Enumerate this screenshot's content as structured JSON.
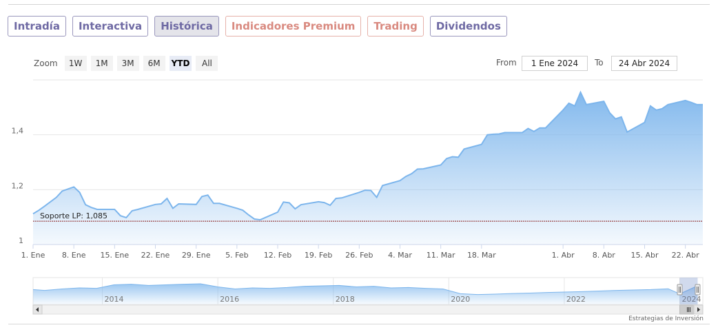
{
  "tabs": [
    {
      "label": "Intradía",
      "active": false
    },
    {
      "label": "Interactiva",
      "active": false
    },
    {
      "label": "Histórica",
      "active": true
    },
    {
      "label": "Indicadores Premium",
      "active": false
    },
    {
      "label": "Trading",
      "active": false
    },
    {
      "label": "Dividendos",
      "active": false
    }
  ],
  "zoom": {
    "label": "Zoom",
    "buttons": [
      "1W",
      "1M",
      "3M",
      "6M",
      "YTD",
      "All"
    ],
    "active": "YTD"
  },
  "range": {
    "from_label": "From",
    "from_value": "1 Ene 2024",
    "to_label": "To",
    "to_value": "24 Abr 2024"
  },
  "credit": "Estrategias de Inversión",
  "colors": {
    "line": "#7cb5ec",
    "area_top": "#7cb5ec",
    "support_line": "#8b1a1a",
    "tab_text": "#6e69a3",
    "premium_text": "#d98a80"
  },
  "chart_data": {
    "type": "area",
    "title": "",
    "xlabel": "",
    "ylabel": "",
    "ylim": [
      1.0,
      1.6
    ],
    "y_ticks": [
      "1",
      "1,2",
      "1,4"
    ],
    "y_tick_values": [
      1.0,
      1.2,
      1.4
    ],
    "x_tick_labels": [
      "1. Ene",
      "8. Ene",
      "15. Ene",
      "22. Ene",
      "29. Ene",
      "5. Feb",
      "12. Feb",
      "19. Feb",
      "26. Feb",
      "4. Mar",
      "11. Mar",
      "18. Mar",
      "1. Abr",
      "8. Abr",
      "15. Abr",
      "22. Abr"
    ],
    "x_tick_days": [
      0,
      7,
      14,
      21,
      28,
      35,
      42,
      49,
      56,
      63,
      70,
      77,
      91,
      98,
      105,
      112
    ],
    "x_range_days": [
      0,
      115
    ],
    "start_date": "2024-01-01",
    "series": [
      {
        "name": "",
        "days": [
          0,
          1,
          2,
          4,
          5,
          7,
          8,
          9,
          10,
          11,
          14,
          15,
          16,
          17,
          18,
          21,
          22,
          23,
          24,
          25,
          28,
          29,
          30,
          31,
          32,
          35,
          36,
          37,
          38,
          39,
          42,
          43,
          44,
          45,
          46,
          49,
          50,
          51,
          52,
          53,
          56,
          57,
          58,
          59,
          60,
          63,
          64,
          65,
          66,
          67,
          70,
          71,
          72,
          73,
          74,
          77,
          78,
          79,
          80,
          81,
          84,
          85,
          86,
          87,
          88,
          91,
          92,
          93,
          94,
          95,
          98,
          99,
          100,
          101,
          102,
          105,
          106,
          107,
          108,
          109,
          112,
          113,
          114,
          115
        ],
        "values": [
          1.112,
          1.125,
          1.14,
          1.172,
          1.195,
          1.21,
          1.19,
          1.145,
          1.135,
          1.128,
          1.128,
          1.105,
          1.098,
          1.123,
          1.128,
          1.146,
          1.148,
          1.168,
          1.132,
          1.148,
          1.146,
          1.175,
          1.18,
          1.15,
          1.15,
          1.132,
          1.125,
          1.108,
          1.093,
          1.09,
          1.118,
          1.155,
          1.152,
          1.13,
          1.145,
          1.156,
          1.153,
          1.143,
          1.168,
          1.17,
          1.19,
          1.198,
          1.197,
          1.172,
          1.215,
          1.233,
          1.248,
          1.258,
          1.275,
          1.276,
          1.29,
          1.313,
          1.32,
          1.318,
          1.348,
          1.365,
          1.4,
          1.402,
          1.403,
          1.408,
          1.408,
          1.423,
          1.412,
          1.425,
          1.425,
          1.49,
          1.515,
          1.505,
          1.555,
          1.51,
          1.522,
          1.48,
          1.458,
          1.465,
          1.41,
          1.445,
          1.505,
          1.49,
          1.495,
          1.51,
          1.525,
          1.518,
          1.51,
          1.51
        ]
      }
    ],
    "plot_lines": [
      {
        "label": "Soporte LP: 1,085",
        "value": 1.085
      }
    ],
    "navigator": {
      "year_labels": [
        "2014",
        "2016",
        "2018",
        "2020",
        "2022",
        "2024"
      ],
      "years": [
        2014,
        2016,
        2018,
        2020,
        2022,
        2024
      ],
      "x_range_years": [
        2012.8,
        2024.4
      ],
      "selected_range_years": [
        2024.0,
        2024.31
      ],
      "y_range": [
        0.6,
        1.9
      ],
      "history_years": [
        2012.8,
        2013.0,
        2013.3,
        2013.6,
        2013.9,
        2014.2,
        2014.5,
        2014.8,
        2015.1,
        2015.4,
        2015.7,
        2016.0,
        2016.3,
        2016.6,
        2016.9,
        2017.2,
        2017.5,
        2017.8,
        2018.1,
        2018.4,
        2018.7,
        2019.0,
        2019.3,
        2019.6,
        2019.9,
        2020.2,
        2020.5,
        2020.8,
        2021.1,
        2021.4,
        2021.7,
        2022.0,
        2022.3,
        2022.6,
        2022.9,
        2023.2,
        2023.5,
        2023.8,
        2024.0,
        2024.15,
        2024.31
      ],
      "history_values": [
        1.32,
        1.28,
        1.35,
        1.4,
        1.38,
        1.55,
        1.58,
        1.52,
        1.55,
        1.58,
        1.6,
        1.45,
        1.35,
        1.4,
        1.38,
        1.42,
        1.48,
        1.5,
        1.52,
        1.45,
        1.48,
        1.4,
        1.42,
        1.38,
        1.35,
        1.12,
        1.08,
        1.1,
        1.13,
        1.15,
        1.18,
        1.2,
        1.22,
        1.25,
        1.28,
        1.3,
        1.32,
        1.36,
        1.11,
        1.3,
        1.51
      ]
    }
  }
}
